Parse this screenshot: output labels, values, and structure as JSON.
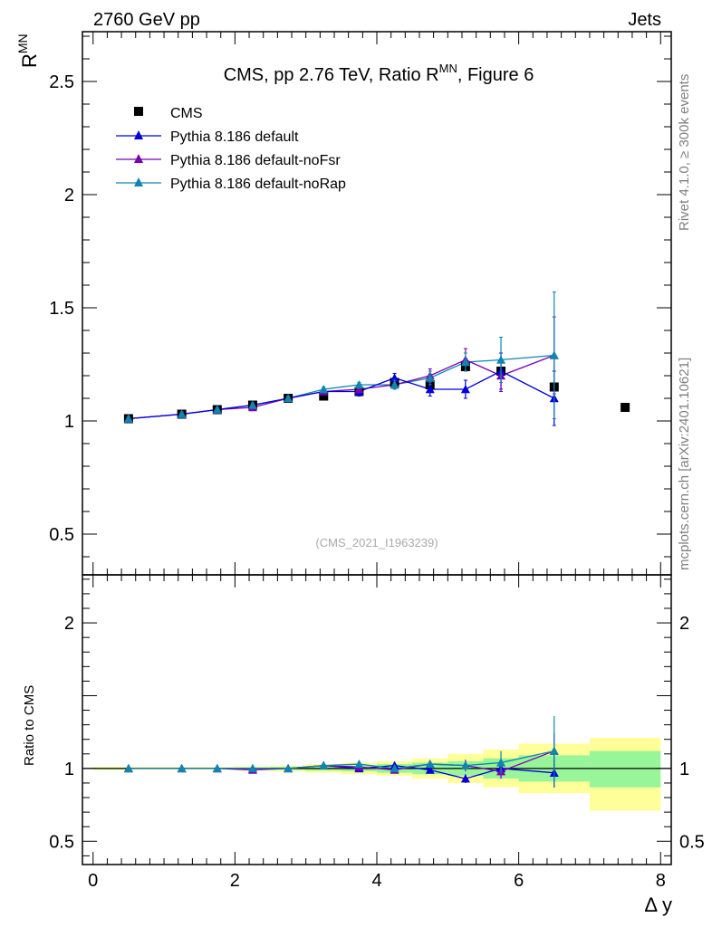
{
  "header": {
    "left_label": "2760 GeV pp",
    "right_label": "Jets",
    "side_text_top": "Rivet 4.1.0, ≥ 300k events",
    "side_text_bottom": "mcplots.cern.ch [arXiv:2401.10621]",
    "watermark": "(CMS_2021_I1963239)"
  },
  "colors": {
    "cms": "#000000",
    "default": "#0000dd",
    "noFsr": "#7a00b0",
    "noRap": "#0f86b0",
    "band_inner": "#99f599",
    "band_outer": "#ffff99"
  },
  "chart_data": [
    {
      "type": "scatter",
      "title": "CMS, pp 2.76 TeV, Ratio R",
      "title_sup": "MN",
      "title_suffix": ", Figure 6",
      "ylabel": "R",
      "ylabel_sup": "MN",
      "xlim": [
        -0.15,
        8.15
      ],
      "ylim": [
        0.32,
        2.72
      ],
      "yticks": [
        0.5,
        1,
        1.5,
        2,
        2.5
      ],
      "ytick_labels": [
        "0.5",
        "1",
        "1.5",
        "2",
        "2.5"
      ],
      "legend_position": "top-left",
      "series": [
        {
          "name": "CMS",
          "marker": "square",
          "x": [
            0.5,
            1.25,
            1.75,
            2.25,
            2.75,
            3.25,
            3.75,
            4.25,
            4.75,
            5.25,
            5.75,
            6.5,
            7.5
          ],
          "y": [
            1.01,
            1.03,
            1.05,
            1.07,
            1.1,
            1.11,
            1.13,
            1.17,
            1.16,
            1.24,
            1.22,
            1.15,
            1.06
          ],
          "err": [
            0.01,
            0.01,
            0.01,
            0.01,
            0.01,
            0.01,
            0.01,
            0.01,
            0.01,
            0.02,
            0.02,
            0.02,
            0.01
          ]
        },
        {
          "name": "Pythia 8.186 default",
          "marker": "triangle",
          "x": [
            0.5,
            1.25,
            1.75,
            2.25,
            2.75,
            3.25,
            3.75,
            4.25,
            4.75,
            5.25,
            5.75,
            6.5
          ],
          "y": [
            1.01,
            1.03,
            1.05,
            1.07,
            1.1,
            1.13,
            1.13,
            1.19,
            1.14,
            1.14,
            1.22,
            1.1
          ],
          "err": [
            0.01,
            0.01,
            0.01,
            0.01,
            0.01,
            0.01,
            0.02,
            0.02,
            0.03,
            0.04,
            0.08,
            0.12
          ]
        },
        {
          "name": "Pythia 8.186 default-noFsr",
          "marker": "triangle",
          "x": [
            0.5,
            1.25,
            1.75,
            2.25,
            2.75,
            3.25,
            3.75,
            4.25,
            4.75,
            5.25,
            5.75,
            6.5
          ],
          "y": [
            1.01,
            1.03,
            1.05,
            1.06,
            1.1,
            1.13,
            1.14,
            1.16,
            1.2,
            1.27,
            1.2,
            1.29
          ],
          "err": [
            0.01,
            0.01,
            0.01,
            0.01,
            0.01,
            0.01,
            0.01,
            0.02,
            0.03,
            0.05,
            0.07,
            0.17
          ]
        },
        {
          "name": "Pythia 8.186 default-noRap",
          "marker": "triangle",
          "x": [
            0.5,
            1.25,
            1.75,
            2.25,
            2.75,
            3.25,
            3.75,
            4.25,
            4.75,
            5.25,
            5.75,
            6.5
          ],
          "y": [
            1.01,
            1.03,
            1.05,
            1.07,
            1.1,
            1.14,
            1.16,
            1.16,
            1.19,
            1.26,
            1.27,
            1.29
          ],
          "err": [
            0.01,
            0.01,
            0.01,
            0.01,
            0.01,
            0.01,
            0.01,
            0.02,
            0.03,
            0.04,
            0.1,
            0.28
          ]
        }
      ]
    },
    {
      "type": "line",
      "ylabel": "Ratio to CMS",
      "xlabel": "Δ y",
      "xlim": [
        -0.15,
        8.15
      ],
      "ylim": [
        0.34,
        2.33
      ],
      "xticks": [
        0,
        2,
        4,
        6,
        8
      ],
      "xtick_labels": [
        "0",
        "2",
        "4",
        "6",
        "8"
      ],
      "yticks": [
        0.5,
        1,
        2
      ],
      "ytick_labels": [
        "0.5",
        "1",
        "2"
      ],
      "reference_line": 1,
      "bands": {
        "edges": [
          0.0,
          1.0,
          1.5,
          2.0,
          2.5,
          3.0,
          3.5,
          4.0,
          4.5,
          5.0,
          5.5,
          6.0,
          7.0,
          8.0
        ],
        "inner_lo": [
          0.995,
          0.995,
          0.995,
          0.993,
          0.99,
          0.985,
          0.98,
          0.97,
          0.96,
          0.95,
          0.93,
          0.91,
          0.87
        ],
        "inner_hi": [
          1.005,
          1.005,
          1.005,
          1.007,
          1.01,
          1.015,
          1.02,
          1.03,
          1.04,
          1.05,
          1.07,
          1.09,
          1.12
        ],
        "outer_lo": [
          0.99,
          0.99,
          0.99,
          0.985,
          0.98,
          0.97,
          0.96,
          0.95,
          0.93,
          0.9,
          0.87,
          0.83,
          0.71
        ],
        "outer_hi": [
          1.01,
          1.01,
          1.01,
          1.015,
          1.02,
          1.03,
          1.04,
          1.05,
          1.07,
          1.1,
          1.13,
          1.17,
          1.21
        ]
      },
      "series": [
        {
          "name": "Pythia 8.186 default",
          "x": [
            0.5,
            1.25,
            1.75,
            2.25,
            2.75,
            3.25,
            3.75,
            4.25,
            4.75,
            5.25,
            5.75,
            6.5
          ],
          "y": [
            1.0,
            1.0,
            1.0,
            1.0,
            1.0,
            1.02,
            1.0,
            1.02,
            0.99,
            0.93,
            1.0,
            0.97
          ],
          "err": [
            0.005,
            0.005,
            0.005,
            0.005,
            0.005,
            0.01,
            0.01,
            0.02,
            0.02,
            0.03,
            0.06,
            0.1
          ]
        },
        {
          "name": "Pythia 8.186 default-noFsr",
          "x": [
            0.5,
            1.25,
            1.75,
            2.25,
            2.75,
            3.25,
            3.75,
            4.25,
            4.75,
            5.25,
            5.75,
            6.5
          ],
          "y": [
            1.0,
            1.0,
            1.0,
            0.99,
            1.0,
            1.02,
            1.01,
            0.99,
            1.03,
            1.02,
            0.98,
            1.12
          ],
          "err": [
            0.005,
            0.005,
            0.005,
            0.005,
            0.005,
            0.01,
            0.01,
            0.02,
            0.02,
            0.04,
            0.05,
            0.12
          ]
        },
        {
          "name": "Pythia 8.186 default-noRap",
          "x": [
            0.5,
            1.25,
            1.75,
            2.25,
            2.75,
            3.25,
            3.75,
            4.25,
            4.75,
            5.25,
            5.75,
            6.5
          ],
          "y": [
            1.0,
            1.0,
            1.0,
            1.0,
            1.0,
            1.02,
            1.03,
            1.0,
            1.03,
            1.02,
            1.04,
            1.12
          ],
          "err": [
            0.005,
            0.005,
            0.005,
            0.005,
            0.005,
            0.01,
            0.01,
            0.02,
            0.02,
            0.03,
            0.08,
            0.24
          ]
        }
      ]
    }
  ]
}
